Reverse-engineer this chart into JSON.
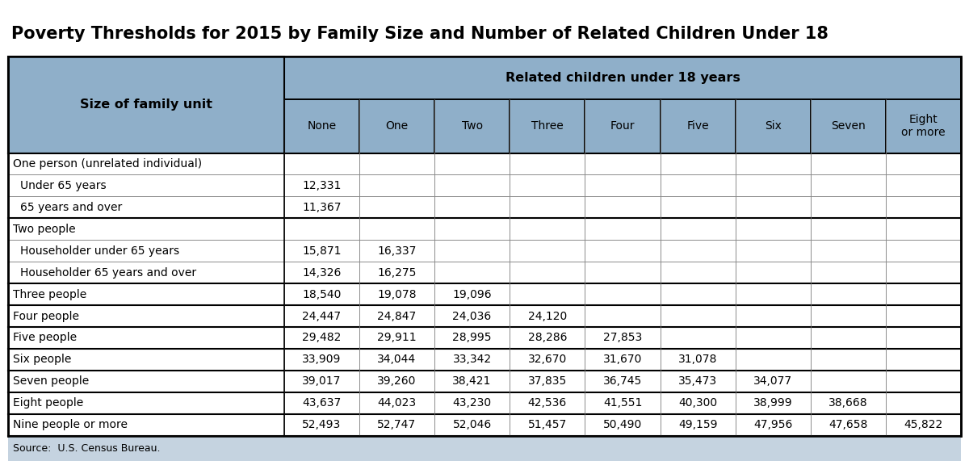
{
  "title": "Poverty Thresholds for 2015 by Family Size and Number of Related Children Under 18",
  "header_row1_label": "Related children under 18 years",
  "header_row2_left": "Size of family unit",
  "col_headers": [
    "None",
    "One",
    "Two",
    "Three",
    "Four",
    "Five",
    "Six",
    "Seven",
    "Eight\nor more"
  ],
  "row_labels": [
    "One person (unrelated individual)",
    " Under 65 years",
    " 65 years and over",
    "Two people",
    " Householder under 65 years",
    " Householder 65 years and over",
    "Three people",
    "Four people",
    "Five people",
    "Six people",
    "Seven people",
    "Eight people",
    "Nine people or more"
  ],
  "table_data": [
    [
      "",
      "",
      "",
      "",
      "",
      "",
      "",
      "",
      ""
    ],
    [
      "12,331",
      "",
      "",
      "",
      "",
      "",
      "",
      "",
      ""
    ],
    [
      "11,367",
      "",
      "",
      "",
      "",
      "",
      "",
      "",
      ""
    ],
    [
      "",
      "",
      "",
      "",
      "",
      "",
      "",
      "",
      ""
    ],
    [
      "15,871",
      "16,337",
      "",
      "",
      "",
      "",
      "",
      "",
      ""
    ],
    [
      "14,326",
      "16,275",
      "",
      "",
      "",
      "",
      "",
      "",
      ""
    ],
    [
      "18,540",
      "19,078",
      "19,096",
      "",
      "",
      "",
      "",
      "",
      ""
    ],
    [
      "24,447",
      "24,847",
      "24,036",
      "24,120",
      "",
      "",
      "",
      "",
      ""
    ],
    [
      "29,482",
      "29,911",
      "28,995",
      "28,286",
      "27,853",
      "",
      "",
      "",
      ""
    ],
    [
      "33,909",
      "34,044",
      "33,342",
      "32,670",
      "31,670",
      "31,078",
      "",
      "",
      ""
    ],
    [
      "39,017",
      "39,260",
      "38,421",
      "37,835",
      "36,745",
      "35,473",
      "34,077",
      "",
      ""
    ],
    [
      "43,637",
      "44,023",
      "43,230",
      "42,536",
      "41,551",
      "40,300",
      "38,999",
      "38,668",
      ""
    ],
    [
      "52,493",
      "52,747",
      "52,046",
      "51,457",
      "50,490",
      "49,159",
      "47,956",
      "47,658",
      "45,822"
    ]
  ],
  "source_text": "Source:  U.S. Census Bureau.",
  "header_bg_color": "#8fafc9",
  "source_bg_color": "#c5d3e0",
  "border_dark": "#000000",
  "border_light": "#888888",
  "title_fontsize": 15,
  "header_fontsize": 11.5,
  "col_header_fontsize": 10,
  "data_fontsize": 10
}
